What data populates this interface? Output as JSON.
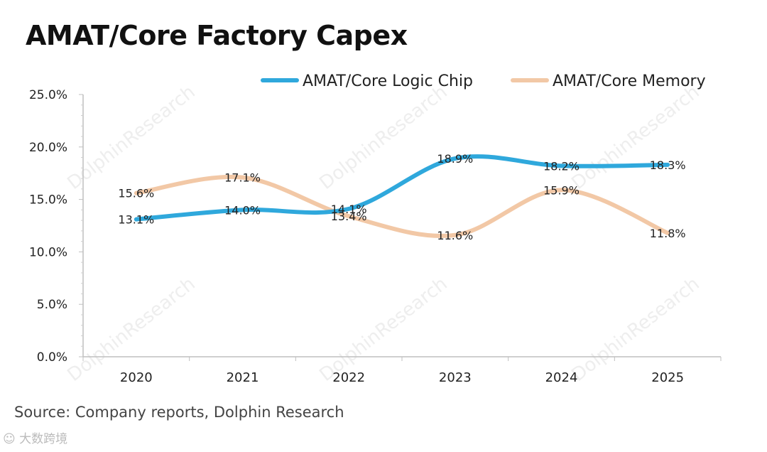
{
  "title": "AMAT/Core Factory Capex",
  "source": "Source: Company reports, Dolphin Research",
  "watermark": "DolphinResearch",
  "corner_watermark": "大数跨境",
  "chart_data": {
    "type": "line",
    "title": "AMAT/Core Factory Capex",
    "categories": [
      "2020",
      "2021",
      "2022",
      "2023",
      "2024",
      "2025"
    ],
    "series": [
      {
        "name": "AMAT/Core Logic Chip",
        "values": [
          13.1,
          14.0,
          14.1,
          18.9,
          18.2,
          18.3
        ],
        "labels": [
          "13.1%",
          "14.0%",
          "14.1%",
          "18.9%",
          "18.2%",
          "18.3%"
        ],
        "color": "#2FA8DC"
      },
      {
        "name": "AMAT/Core Memory",
        "values": [
          15.6,
          17.1,
          13.4,
          11.6,
          15.9,
          11.8
        ],
        "labels": [
          "15.6%",
          "17.1%",
          "13.4%",
          "11.6%",
          "15.9%",
          "11.8%"
        ],
        "color": "#F2C8A6"
      }
    ],
    "y_ticks": [
      "0.0%",
      "5.0%",
      "10.0%",
      "15.0%",
      "20.0%",
      "25.0%"
    ],
    "ylim": [
      0,
      25
    ],
    "xlabel": "",
    "ylabel": "",
    "legend_position": "top-right",
    "grid": false
  }
}
